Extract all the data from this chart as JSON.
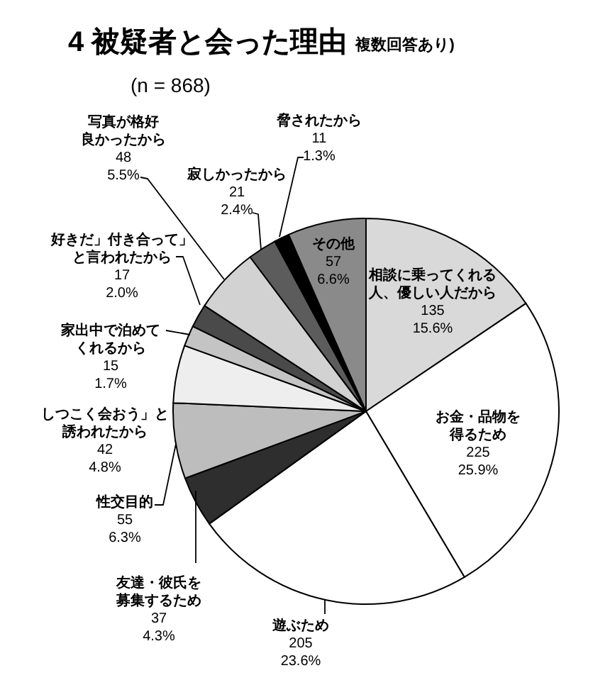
{
  "chart_data": {
    "type": "pie",
    "title": "4 被疑者と会った理由",
    "subtitle": "複数回答あり)",
    "annotations": [
      "(n = 868)"
    ],
    "categories": [
      "相談に乗ってくれる人、優しい人だから",
      "お金・品物を得るため",
      "遊ぶため",
      "友達・彼氏を募集するため",
      "性交目的",
      "しつこく会おう」と誘われたから",
      "家出中で泊めてくれるから",
      "好きだ」付き合って」と言われたから",
      "写真が格好良かったから",
      "寂しかったから",
      "脅されたから",
      "その他"
    ],
    "values": [
      135,
      225,
      205,
      37,
      55,
      42,
      15,
      17,
      48,
      21,
      11,
      57
    ],
    "colors": [
      "#d9d9d9",
      "#ffffff",
      "#ffffff",
      "#2e2e2e",
      "#bdbdbd",
      "#eeeeee",
      "#c4c4c4",
      "#4a4a4a",
      "#d2d2d2",
      "#5c5c5c",
      "#000000",
      "#8a8a8a"
    ],
    "value_labels": [
      "135\n15.6%",
      "225\n25.9%",
      "205\n23.6%",
      "37\n4.3%",
      "55\n6.3%",
      "42\n4.8%",
      "15\n1.7%",
      "17\n2.0%",
      "48\n5.5%",
      "21\n2.4%",
      "11\n1.3%",
      "57\n6.6%"
    ]
  }
}
